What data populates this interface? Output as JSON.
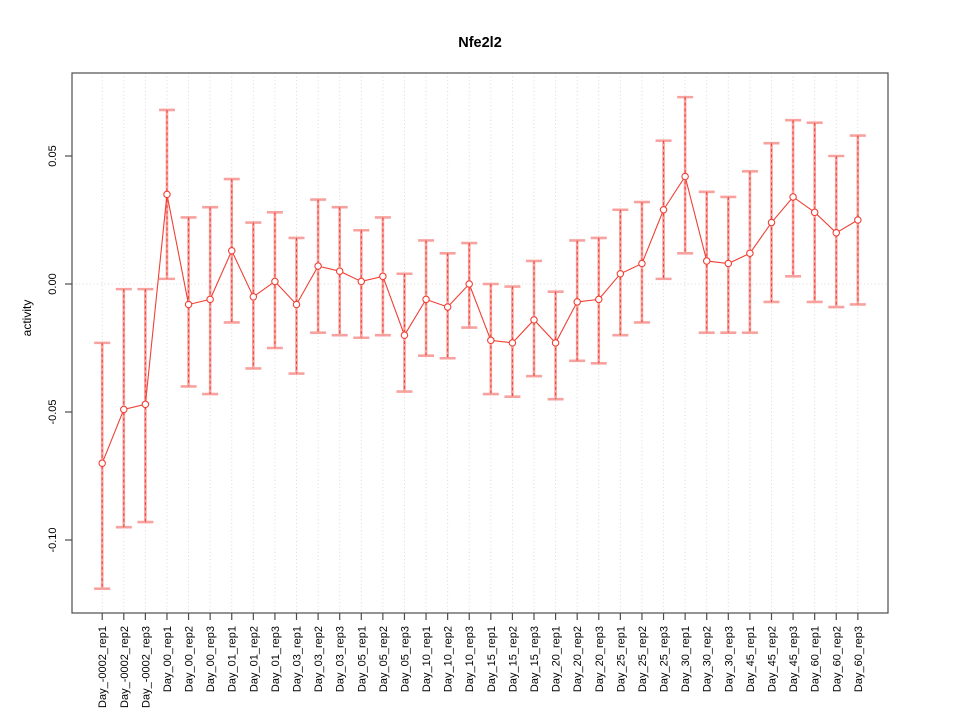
{
  "title": "Nfe2l2",
  "chart_data": {
    "type": "line",
    "subtype": "points-with-error-bars",
    "title": "Nfe2l2",
    "xlabel": "",
    "ylabel": "activity",
    "categories": [
      "Day_-0002_rep1",
      "Day_-0002_rep2",
      "Day_-0002_rep3",
      "Day_00_rep1",
      "Day_00_rep2",
      "Day_00_rep3",
      "Day_01_rep1",
      "Day_01_rep2",
      "Day_01_rep3",
      "Day_03_rep1",
      "Day_03_rep2",
      "Day_03_rep3",
      "Day_05_rep1",
      "Day_05_rep2",
      "Day_05_rep3",
      "Day_10_rep1",
      "Day_10_rep2",
      "Day_10_rep3",
      "Day_15_rep1",
      "Day_15_rep2",
      "Day_15_rep3",
      "Day_20_rep1",
      "Day_20_rep2",
      "Day_20_rep3",
      "Day_25_rep1",
      "Day_25_rep2",
      "Day_25_rep3",
      "Day_30_rep1",
      "Day_30_rep2",
      "Day_30_rep3",
      "Day_45_rep1",
      "Day_45_rep2",
      "Day_45_rep3",
      "Day_60_rep1",
      "Day_60_rep2",
      "Day_60_rep3"
    ],
    "series": [
      {
        "name": "activity",
        "values": [
          -0.07,
          -0.049,
          -0.047,
          0.035,
          -0.008,
          -0.006,
          0.013,
          -0.005,
          0.001,
          -0.008,
          0.007,
          0.005,
          0.001,
          0.003,
          -0.02,
          -0.006,
          -0.009,
          0.0,
          -0.022,
          -0.023,
          -0.014,
          -0.023,
          -0.007,
          -0.006,
          0.004,
          0.008,
          0.029,
          0.042,
          0.009,
          0.008,
          0.012,
          0.024,
          0.034,
          0.028,
          0.02,
          0.025
        ],
        "ci_high": [
          -0.023,
          -0.002,
          -0.002,
          0.068,
          0.026,
          0.03,
          0.041,
          0.024,
          0.028,
          0.018,
          0.033,
          0.03,
          0.021,
          0.026,
          0.004,
          0.017,
          0.012,
          0.016,
          0.0,
          -0.001,
          0.009,
          -0.003,
          0.017,
          0.018,
          0.029,
          0.032,
          0.056,
          0.073,
          0.036,
          0.034,
          0.044,
          0.055,
          0.064,
          0.063,
          0.05,
          0.058
        ],
        "ci_low": [
          -0.119,
          -0.095,
          -0.093,
          0.002,
          -0.04,
          -0.043,
          -0.015,
          -0.033,
          -0.025,
          -0.035,
          -0.019,
          -0.02,
          -0.021,
          -0.02,
          -0.042,
          -0.028,
          -0.029,
          -0.017,
          -0.043,
          -0.044,
          -0.036,
          -0.045,
          -0.03,
          -0.031,
          -0.02,
          -0.015,
          0.002,
          0.012,
          -0.019,
          -0.019,
          -0.019,
          -0.007,
          0.003,
          -0.007,
          -0.009,
          -0.008
        ]
      }
    ],
    "ylim": [
      -0.128,
      0.083
    ],
    "y_ticks": {
      "values": [
        0.05,
        0,
        -0.05,
        -0.1
      ],
      "labels": [
        "0.05",
        "0.00",
        "-0.05",
        "-0.10"
      ]
    },
    "grid": {
      "vertical_dotted_per_category": true,
      "horizontal_dotted_zero_line": true,
      "other_horizontal_gridlines": false
    },
    "legend": "none",
    "x_tick_label_rotation_deg": 90,
    "colors": {
      "line": "#f04035",
      "point": "#f04035",
      "error_bar": "#f7a29e",
      "error_bar_dash_overlay": "#f04035",
      "grid": "#d9d9d9",
      "frame": "#4d4d4d",
      "text": "#000000"
    }
  }
}
